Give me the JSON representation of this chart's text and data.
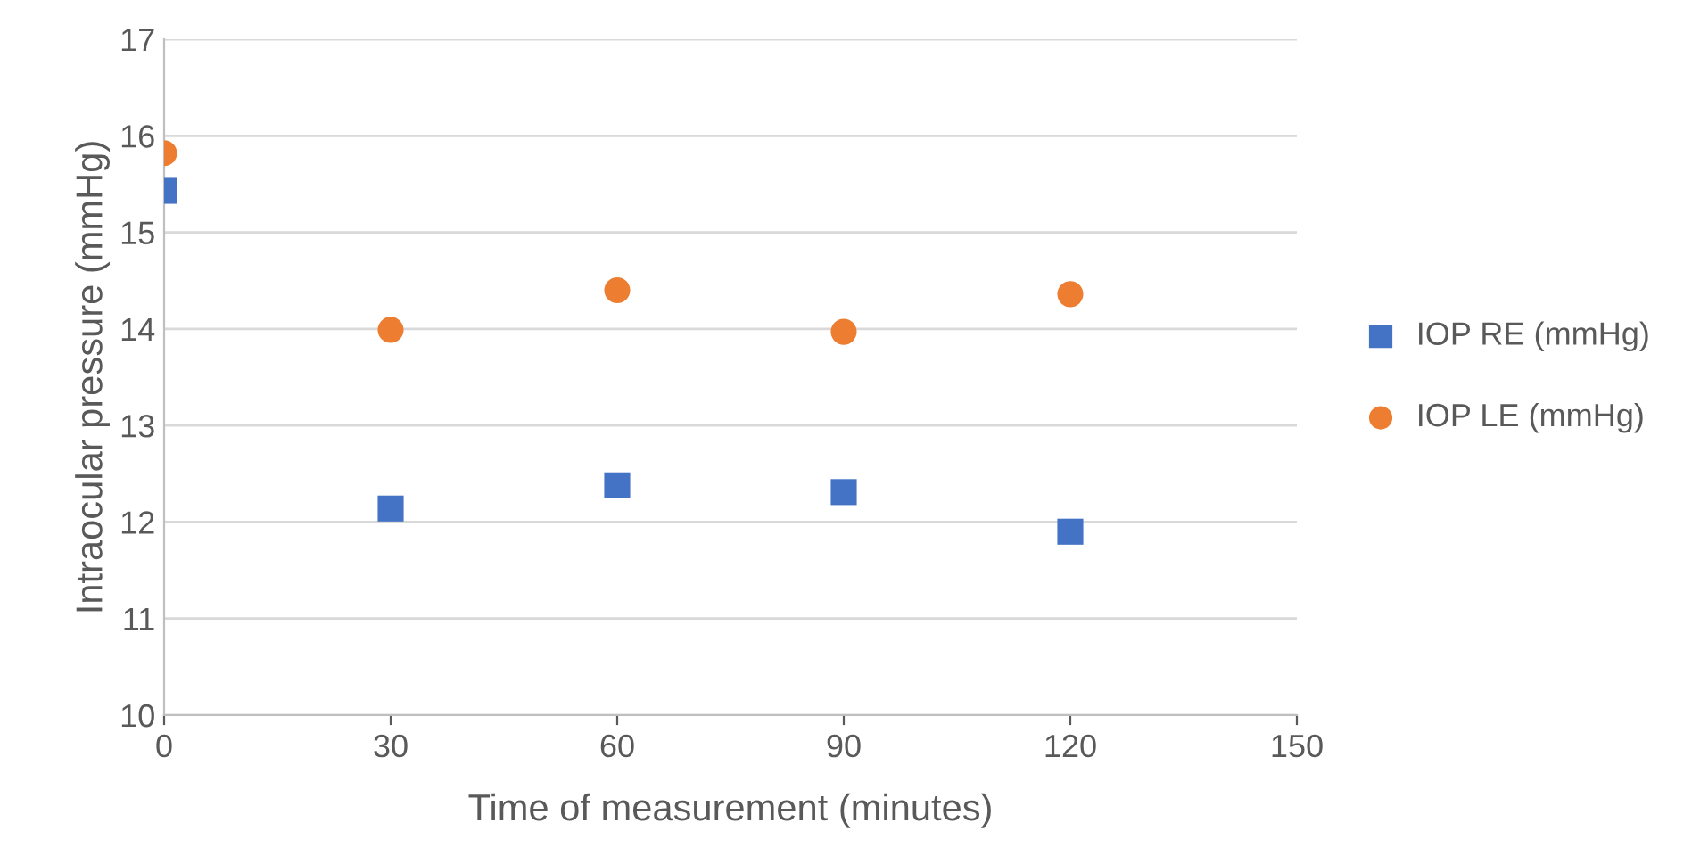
{
  "chart_data": {
    "type": "scatter",
    "xlabel": "Time of measurement (minutes)",
    "ylabel": "Intraocular pressure (mmHg)",
    "x": [
      0,
      30,
      60,
      90,
      120
    ],
    "series": [
      {
        "name": "IOP RE (mmHg)",
        "color": "#4472c4",
        "marker": "square",
        "values": [
          15.43,
          12.14,
          12.38,
          12.31,
          11.9
        ]
      },
      {
        "name": "IOP LE (mmHg)",
        "color": "#ed7d31",
        "marker": "circle",
        "values": [
          15.82,
          13.99,
          14.4,
          13.97,
          14.36
        ]
      }
    ],
    "xlim": [
      0,
      150
    ],
    "xticks": [
      0,
      30,
      60,
      90,
      120,
      150
    ],
    "ylim": [
      10,
      17
    ],
    "yticks": [
      10,
      11,
      12,
      13,
      14,
      15,
      16,
      17
    ],
    "grid": "y",
    "legend": "right"
  }
}
